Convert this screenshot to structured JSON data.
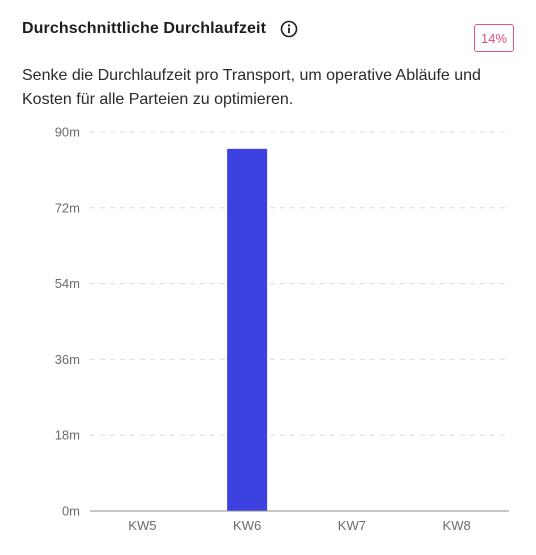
{
  "header": {
    "title": "Durchschnittliche Durchlaufzeit",
    "info_icon": "info-circle-icon",
    "badge": "14%"
  },
  "description": "Senke die Durchlaufzeit pro Transport, um operative Abläufe und Kosten für alle Parteien zu optimieren.",
  "colors": {
    "bar": "#3d41df",
    "badge": "#e04b83",
    "grid": "#dcdcdc",
    "axis": "#8c8c8c"
  },
  "chart_data": {
    "type": "bar",
    "categories": [
      "KW5",
      "KW6",
      "KW7",
      "KW8"
    ],
    "values": [
      0,
      86,
      0,
      0
    ],
    "ylim": [
      0,
      90
    ],
    "yticks": [
      0,
      18,
      36,
      54,
      72,
      90
    ],
    "ytick_labels": [
      "0m",
      "18m",
      "36m",
      "54m",
      "72m",
      "90m"
    ],
    "xlabel": "",
    "ylabel": "",
    "grid": true
  }
}
